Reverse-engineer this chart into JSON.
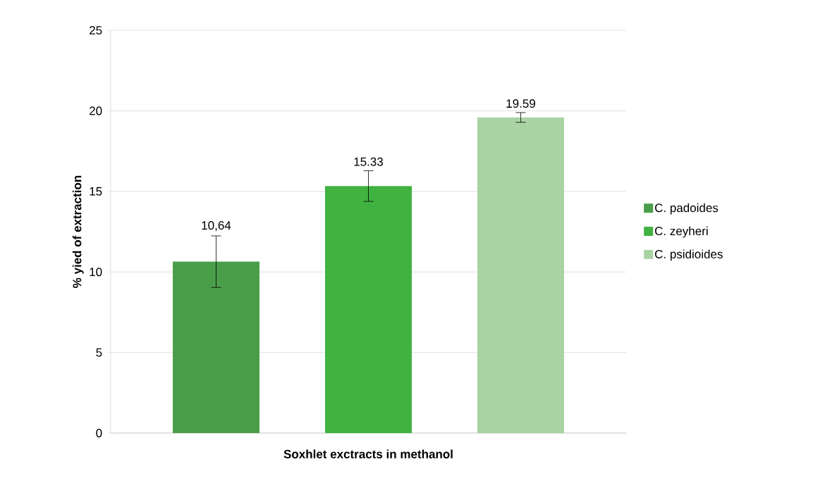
{
  "chart_data": {
    "type": "bar",
    "xlabel": "Soxhlet exctracts in methanol",
    "ylabel": "% yied of extraction",
    "categories": [
      null
    ],
    "series": [
      {
        "name": "C. padoides",
        "color": "#4a9e4a",
        "values": [
          10.64
        ],
        "errors": [
          1.6
        ],
        "value_labels": [
          "10,64"
        ]
      },
      {
        "name": "C. zeyheri",
        "color": "#40b240",
        "values": [
          15.33
        ],
        "errors": [
          0.95
        ],
        "value_labels": [
          "15.33"
        ]
      },
      {
        "name": "C. psidioides",
        "color": "#a9d3a3",
        "values": [
          19.59
        ],
        "errors": [
          0.3
        ],
        "value_labels": [
          "19.59"
        ]
      }
    ],
    "ylim": [
      0,
      25
    ],
    "yticks": [
      0,
      5,
      10,
      15,
      20,
      25
    ],
    "grid": "y",
    "legend": "right"
  }
}
